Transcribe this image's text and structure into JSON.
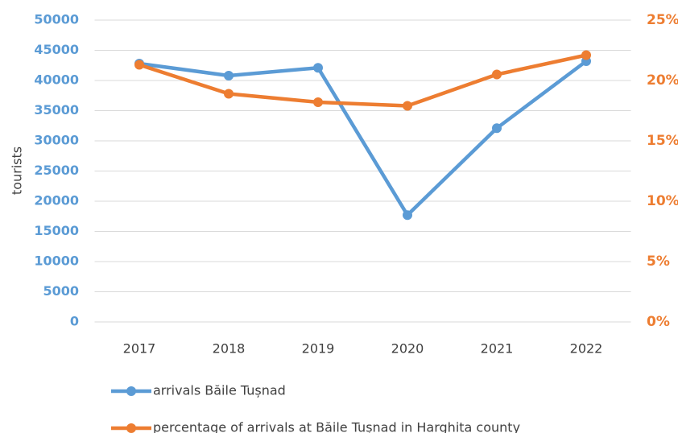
{
  "chart_data": {
    "type": "line",
    "categories": [
      "2017",
      "2018",
      "2019",
      "2020",
      "2021",
      "2022"
    ],
    "series": [
      {
        "name": "arrivals Băile Tușnad",
        "color": "#5b9bd5",
        "values": [
          42800,
          40800,
          42100,
          17700,
          32100,
          43200
        ]
      },
      {
        "name": "percentage of arrivals at Băile Tușnad in Harghita county",
        "color": "#ed7d31",
        "axis": "y2",
        "values": [
          21.3,
          18.9,
          18.2,
          17.9,
          20.5,
          22.1
        ]
      }
    ],
    "ylabel": "tourists",
    "ylim": [
      0,
      50000
    ],
    "yticks": [
      0,
      5000,
      10000,
      15000,
      20000,
      25000,
      30000,
      35000,
      40000,
      45000,
      50000
    ],
    "y2lim": [
      0,
      25
    ],
    "y2ticks": [
      {
        "value": 0,
        "label": "0%"
      },
      {
        "value": 5,
        "label": "5%"
      },
      {
        "value": 10,
        "label": "10%"
      },
      {
        "value": 15,
        "label": "15%"
      },
      {
        "value": 20,
        "label": "20%"
      },
      {
        "value": 25,
        "label": "25%"
      }
    ],
    "grid": true,
    "legend": "bottom"
  }
}
